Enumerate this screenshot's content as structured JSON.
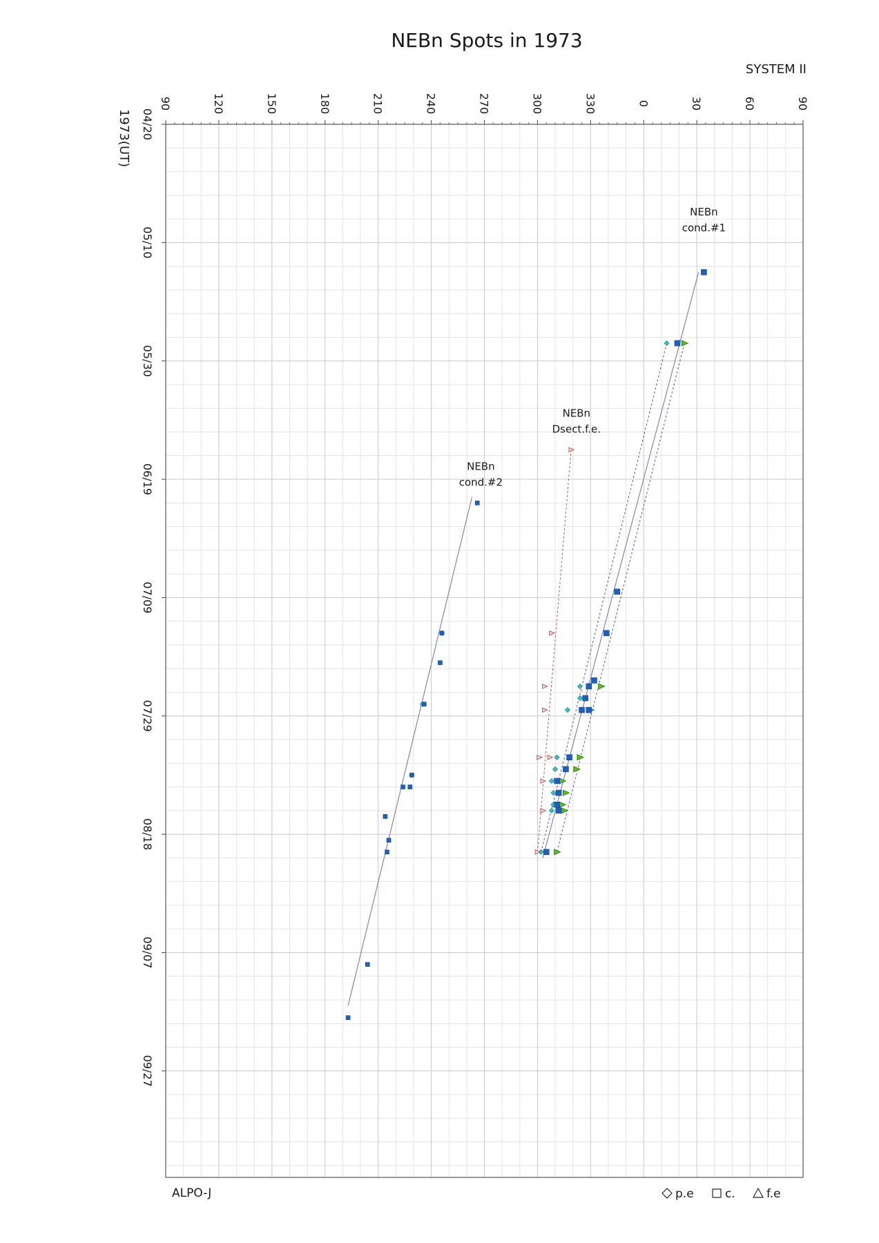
{
  "chart_data": {
    "type": "scatter",
    "title": "NEBn Spots in 1973",
    "system_label": "SYSTEM II",
    "ylabel": "1973(UT)",
    "credit": "ALPO-J",
    "x_ticks": [
      "90",
      "120",
      "150",
      "180",
      "210",
      "240",
      "270",
      "300",
      "330",
      "0",
      "30",
      "60",
      "90"
    ],
    "y_ticks": [
      "04/20",
      "05/10",
      "05/30",
      "06/19",
      "07/09",
      "07/29",
      "08/18",
      "09/07",
      "09/27"
    ],
    "x_range_deg": [
      90,
      450
    ],
    "y_range_days": [
      0,
      178
    ],
    "grid": true,
    "legend_position": "bottom-right",
    "legend": [
      {
        "label": "p.e",
        "marker": "diamond"
      },
      {
        "label": "c.",
        "marker": "square"
      },
      {
        "label": "f.e",
        "marker": "triangle"
      }
    ],
    "colors": {
      "c": "#1f5fbf",
      "pe": "#3fbfc0",
      "fe": "#5cc020",
      "dsect": "#c0504d",
      "trend": "#7f86b4",
      "grid": "#c8c8c8"
    },
    "annotations": [
      {
        "lines": [
          "NEBn",
          "cond.#1"
        ],
        "date": "05/08",
        "lon": 34
      },
      {
        "lines": [
          "NEBn",
          "Dsect.f.e."
        ],
        "date": "06/11",
        "lon": 322
      },
      {
        "lines": [
          "NEBn",
          "cond.#2"
        ],
        "date": "06/20",
        "lon": 268
      }
    ],
    "series": [
      {
        "name": "cond.#1",
        "trend": {
          "start": {
            "date": "05/15",
            "lon": 31
          },
          "end": {
            "date": "08/22",
            "lon": 303
          }
        },
        "points": [
          {
            "date": "05/15",
            "lon": 34
          },
          {
            "date": "05/27",
            "lon": 19,
            "pe": 13,
            "fe": 23
          },
          {
            "date": "07/08",
            "lon": 345
          },
          {
            "date": "07/15",
            "lon": 339
          },
          {
            "date": "07/23",
            "lon": 332
          },
          {
            "date": "07/24",
            "lon": 329,
            "pe": 324,
            "fe": 336
          },
          {
            "date": "07/26",
            "lon": 327,
            "pe": 324
          },
          {
            "date": "07/28",
            "lon": 329,
            "pe": 317,
            "fe": 330
          },
          {
            "date": "07/28",
            "lon": 325
          },
          {
            "date": "08/05",
            "lon": 318,
            "pe": 311,
            "fe": 324
          },
          {
            "date": "08/07",
            "lon": 316,
            "pe": 310,
            "fe": 322
          },
          {
            "date": "08/09",
            "lon": 311,
            "pe": 308,
            "fe": 314
          },
          {
            "date": "08/11",
            "lon": 312,
            "pe": 309,
            "fe": 316
          },
          {
            "date": "08/13",
            "lon": 311,
            "pe": 309,
            "fe": 314
          },
          {
            "date": "08/14",
            "lon": 312,
            "pe": 308,
            "fe": 315
          },
          {
            "date": "08/21",
            "lon": 305,
            "pe": 302,
            "fe": 311
          }
        ]
      },
      {
        "name": "Dsect.f.e.",
        "points": [
          {
            "date": "06/14",
            "lon": 319
          },
          {
            "date": "07/15",
            "lon": 308
          },
          {
            "date": "07/24",
            "lon": 304
          },
          {
            "date": "07/28",
            "lon": 304
          },
          {
            "date": "08/05",
            "lon": 301
          },
          {
            "date": "08/05",
            "lon": 307
          },
          {
            "date": "08/09",
            "lon": 303
          },
          {
            "date": "08/14",
            "lon": 303
          },
          {
            "date": "08/21",
            "lon": 300
          }
        ]
      },
      {
        "name": "cond.#2",
        "trend": {
          "start": {
            "date": "06/22",
            "lon": 263
          },
          "end": {
            "date": "09/16",
            "lon": 193
          }
        },
        "points": [
          {
            "date": "06/23",
            "lon": 266
          },
          {
            "date": "07/15",
            "lon": 246,
            "pe": 246
          },
          {
            "date": "07/20",
            "lon": 245
          },
          {
            "date": "07/27",
            "lon": 236,
            "pe": 235
          },
          {
            "date": "08/08",
            "lon": 229,
            "pe": 229
          },
          {
            "date": "08/10",
            "lon": 228
          },
          {
            "date": "08/10",
            "lon": 224
          },
          {
            "date": "08/15",
            "lon": 214
          },
          {
            "date": "08/19",
            "lon": 216
          },
          {
            "date": "08/21",
            "lon": 215
          },
          {
            "date": "09/09",
            "lon": 204
          },
          {
            "date": "09/18",
            "lon": 193
          }
        ]
      }
    ]
  }
}
